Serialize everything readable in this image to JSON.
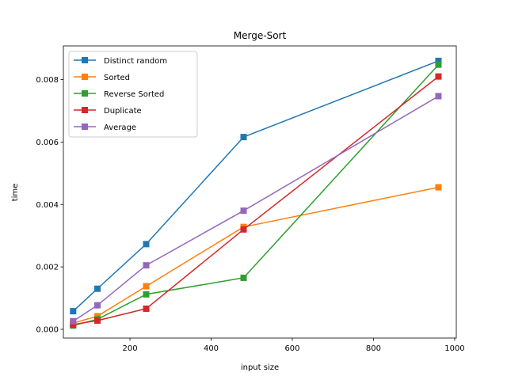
{
  "chart_data": {
    "type": "line",
    "title": "Merge-Sort",
    "xlabel": "input size",
    "ylabel": "time",
    "xlim": [
      36,
      1004
    ],
    "ylim": [
      -0.00028,
      0.00908
    ],
    "xticks": [
      200,
      400,
      600,
      800,
      1000
    ],
    "xtick_labels": [
      "200",
      "400",
      "600",
      "800",
      "1000"
    ],
    "yticks": [
      0.0,
      0.002,
      0.004,
      0.006,
      0.008
    ],
    "ytick_labels": [
      "0.000",
      "0.002",
      "0.004",
      "0.006",
      "0.008"
    ],
    "grid": false,
    "legend_position": "top-left",
    "x": [
      60,
      120,
      240,
      480,
      960
    ],
    "series": [
      {
        "name": "Distinct random",
        "color": "#1f77b4",
        "marker": "square",
        "values": [
          0.00058,
          0.0013,
          0.00273,
          0.00616,
          0.0086
        ]
      },
      {
        "name": "Sorted",
        "color": "#ff7f0e",
        "marker": "square",
        "values": [
          0.0002,
          0.00042,
          0.00138,
          0.00328,
          0.00455
        ]
      },
      {
        "name": "Reverse Sorted",
        "color": "#2ca02c",
        "marker": "square",
        "values": [
          0.00012,
          0.00032,
          0.00112,
          0.00165,
          0.00848
        ]
      },
      {
        "name": "Duplicate",
        "color": "#d62728",
        "marker": "square",
        "values": [
          0.00015,
          0.00028,
          0.00066,
          0.0032,
          0.0081
        ]
      },
      {
        "name": "Average",
        "color": "#9467bd",
        "marker": "square",
        "values": [
          0.00026,
          0.00077,
          0.00205,
          0.0038,
          0.00747
        ]
      }
    ]
  }
}
